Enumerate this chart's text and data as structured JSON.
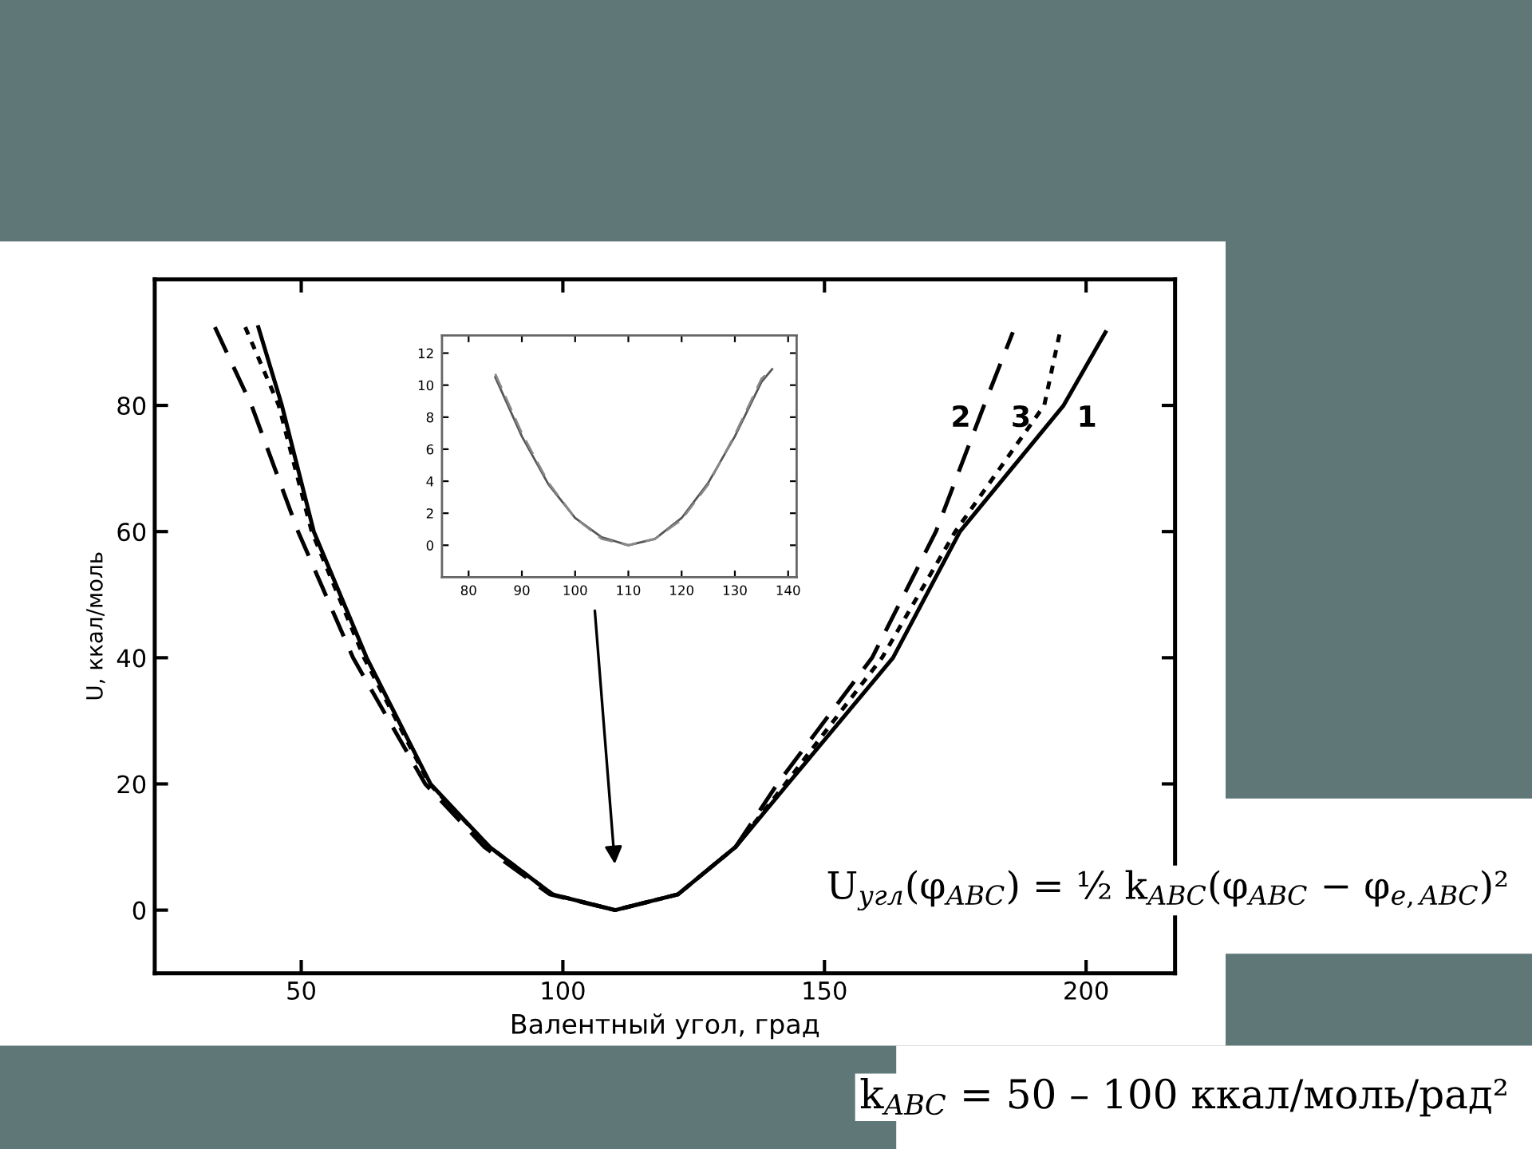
{
  "chart_data": [
    {
      "type": "line",
      "xlabel": "Валентный угол, град",
      "ylabel": "U, ккал/моль",
      "xlim": [
        22,
        217
      ],
      "ylim": [
        -10,
        100
      ],
      "xticks": [
        50,
        100,
        150,
        200
      ],
      "yticks": [
        0,
        20,
        40,
        60,
        80
      ],
      "grid": false,
      "legend": false,
      "series": [
        {
          "color": "#000000",
          "line_style": "solid",
          "x": [
            41.8,
            46.3,
            52.4,
            62.5,
            74.7,
            86,
            98,
            110,
            122,
            133,
            143,
            163.1,
            175.9,
            195.7,
            203.7
          ],
          "values": [
            92.4,
            80,
            60,
            40,
            20,
            10,
            2.5,
            0,
            2.5,
            10,
            20,
            40,
            60,
            80,
            91.6
          ]
        },
        {
          "color": "#000000",
          "line_style": "dashed",
          "x": [
            33.5,
            40.5,
            49.4,
            59.9,
            73.7,
            85,
            97.5,
            110,
            122,
            133,
            141,
            159.1,
            171.3,
            180.5,
            186
          ],
          "values": [
            92.4,
            80,
            60,
            40,
            20,
            10,
            2.5,
            0,
            2.5,
            10,
            20,
            40,
            60,
            80,
            91.6
          ]
        },
        {
          "color": "#000000",
          "line_style": "dotted",
          "x": [
            39.3,
            45.7,
            52,
            62,
            74.5,
            86,
            98,
            110,
            122,
            133,
            142.5,
            161,
            175,
            192,
            195
          ],
          "values": [
            92.4,
            80,
            60,
            40,
            20,
            10,
            2.5,
            0,
            2.5,
            10,
            20,
            40,
            60,
            80,
            91.6
          ]
        }
      ],
      "annotations": [
        {
          "text": "1",
          "x": 195.7,
          "y": 80
        },
        {
          "text": "2",
          "x": 180.5,
          "y": 80
        },
        {
          "text": "3",
          "x": 192,
          "y": 80
        },
        "U$_{угл}$(φ$_{ABC}$) = ½ k$_{ABC}$(φ$_{ABC}$ − φ$_{e,ABC}$)²",
        "k$_{ABC}$ = 50 – 100 ккал/моль/рад²"
      ]
    },
    {
      "type": "line",
      "xlim": [
        75,
        141.6
      ],
      "ylim": [
        -2,
        13.1
      ],
      "xticks": [
        80,
        90,
        100,
        110,
        120,
        130,
        140
      ],
      "yticks": [
        0,
        2,
        4,
        6,
        8,
        10,
        12
      ],
      "grid": false,
      "legend": false,
      "series": [
        {
          "color": "#555555",
          "line_style": "solid",
          "x": [
            85,
            90,
            95,
            100,
            105,
            110,
            115,
            120,
            125,
            130,
            135,
            137
          ],
          "values": [
            10.5,
            6.8,
            3.8,
            1.7,
            0.5,
            0,
            0.4,
            1.7,
            3.9,
            6.8,
            10.2,
            11
          ]
        },
        {
          "color": "#888888",
          "line_style": "dashed",
          "x": [
            85,
            90,
            95,
            100,
            105,
            110,
            115,
            120,
            125,
            130,
            135,
            137
          ],
          "values": [
            10.7,
            7.0,
            3.9,
            1.7,
            0.4,
            0,
            0.4,
            1.6,
            3.8,
            6.9,
            10.4,
            11.0
          ]
        }
      ]
    }
  ]
}
